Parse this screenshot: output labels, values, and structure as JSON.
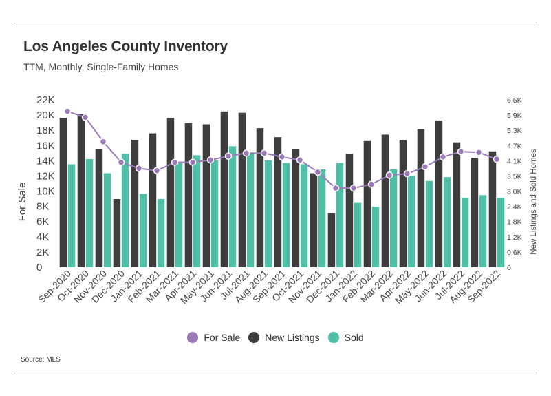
{
  "header": {
    "title": "Los Angeles County Inventory",
    "subtitle": "TTM, Monthly, Single-Family Homes"
  },
  "footer": {
    "source": "Source:  MLS"
  },
  "colors": {
    "for_sale": "#9a7ab8",
    "for_sale_line": "#9a7ab8",
    "new_listings": "#3d3d3d",
    "sold": "#4fbfa8"
  },
  "chart_data": {
    "type": "bar",
    "title": "Los Angeles County Inventory",
    "subtitle": "TTM, Monthly, Single-Family Homes",
    "categories": [
      "Sep-2020",
      "Oct-2020",
      "Nov-2020",
      "Dec-2020",
      "Jan-2021",
      "Feb-2021",
      "Mar-2021",
      "Apr-2021",
      "May-2021",
      "Jun-2021",
      "Jul-2021",
      "Aug-2021",
      "Sep-2021",
      "Oct-2021",
      "Nov-2021",
      "Dec-2021",
      "Jan-2022",
      "Feb-2022",
      "Mar-2022",
      "Apr-2022",
      "May-2022",
      "Jun-2022",
      "Jul-2022",
      "Aug-2022",
      "Sep-2022"
    ],
    "ylabel": "For Sale",
    "y2label": "New Listings and Sold Homes",
    "ylim": [
      0,
      22000
    ],
    "y2lim": [
      0,
      6500
    ],
    "yticks": [
      "0",
      "2K",
      "4K",
      "6K",
      "8K",
      "10K",
      "12K",
      "14K",
      "16K",
      "18K",
      "20K",
      "22K"
    ],
    "y2ticks": [
      "0",
      "0.6K",
      "1.2K",
      "1.8K",
      "2.4K",
      "3.0K",
      "3.5K",
      "4.1K",
      "4.7K",
      "5.3K",
      "5.9K",
      "6.5K"
    ],
    "series": [
      {
        "name": "For Sale",
        "type": "line",
        "axis": "left",
        "values": [
          20500,
          19700,
          16500,
          13800,
          13000,
          12700,
          13800,
          13800,
          14100,
          14600,
          15000,
          15000,
          14500,
          14100,
          12500,
          10400,
          10400,
          10900,
          12100,
          12300,
          13200,
          14500,
          15200,
          15100,
          14200
        ]
      },
      {
        "name": "New Listings",
        "type": "bar",
        "axis": "right",
        "values": [
          5800,
          5950,
          4600,
          2650,
          4950,
          5200,
          5800,
          5600,
          5550,
          6050,
          6000,
          5400,
          5050,
          4600,
          3650,
          2100,
          4400,
          4900,
          5150,
          4950,
          5350,
          5700,
          4850,
          4250,
          4500
        ]
      },
      {
        "name": "Sold",
        "type": "bar",
        "axis": "right",
        "values": [
          4000,
          4200,
          3650,
          4400,
          2850,
          2650,
          4050,
          4350,
          4150,
          4700,
          4400,
          4150,
          4050,
          4000,
          3800,
          4050,
          2500,
          2350,
          3800,
          3550,
          3350,
          3500,
          2700,
          2800,
          2700
        ]
      }
    ],
    "legend": {
      "position": "bottom",
      "entries": [
        "For Sale",
        "New Listings",
        "Sold"
      ]
    },
    "grid": false
  }
}
